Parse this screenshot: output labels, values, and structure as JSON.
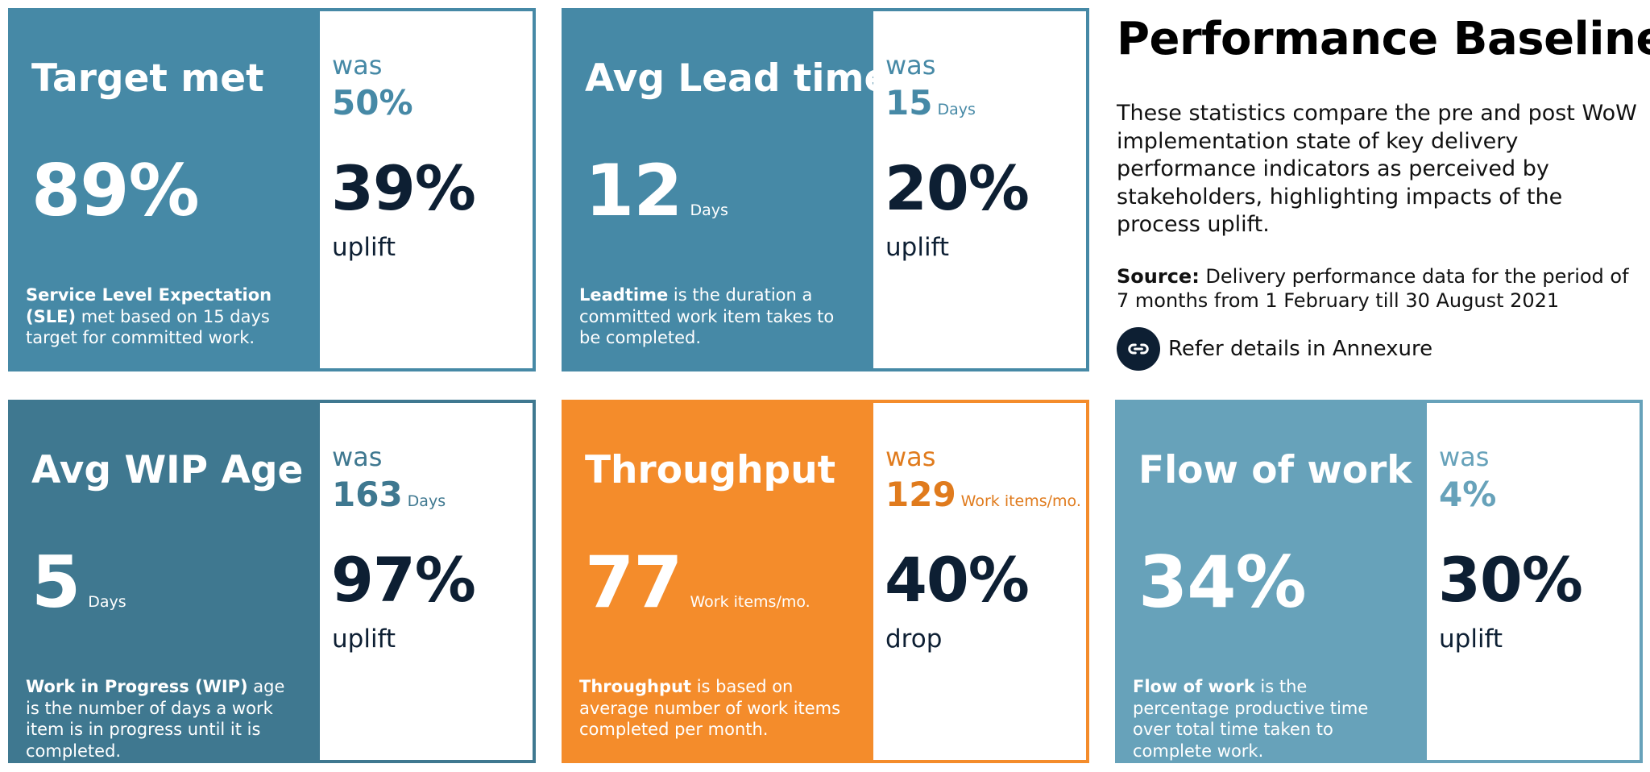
{
  "colors": {
    "teal": "#4689a6",
    "dark_teal": "#3f7890",
    "orange": "#f48c2b",
    "light_teal": "#67a2ba",
    "navy": "#0d1f33"
  },
  "cards": [
    {
      "title": "Target met",
      "value": "89%",
      "value_unit": "",
      "desc_bold": "Service Level Expectation (SLE)",
      "desc_rest": " met based on 15 days target for committed work.",
      "was_label": "was",
      "old_value": "50%",
      "old_unit": "",
      "change_pct": "39%",
      "change_word": "uplift"
    },
    {
      "title": "Avg Lead time",
      "value": "12",
      "value_unit": "Days",
      "desc_bold": "Leadtime",
      "desc_rest": " is the duration a committed work item takes to be completed.",
      "was_label": "was",
      "old_value": "15",
      "old_unit": "Days",
      "change_pct": "20%",
      "change_word": "uplift"
    },
    {
      "title": "Avg WIP Age",
      "value": "5",
      "value_unit": "Days",
      "desc_bold": "Work in Progress (WIP)",
      "desc_rest": " age is the number of days a work item is in progress until it is completed.",
      "was_label": "was",
      "old_value": "163",
      "old_unit": "Days",
      "change_pct": "97%",
      "change_word": "uplift"
    },
    {
      "title": "Throughput",
      "value": "77",
      "value_unit": "Work items/mo.",
      "desc_bold": "Throughput",
      "desc_rest": " is based on average number of work items completed per month.",
      "was_label": "was",
      "old_value": "129",
      "old_unit": "Work items/mo.",
      "change_pct": "40%",
      "change_word": "drop"
    },
    {
      "title": "Flow of work",
      "value": "34%",
      "value_unit": "",
      "desc_bold": "Flow of work",
      "desc_rest": " is the percentage productive time over total time taken to complete work.",
      "was_label": "was",
      "old_value": "4%",
      "old_unit": "",
      "change_pct": "30%",
      "change_word": "uplift"
    }
  ],
  "panel": {
    "title": "Performance Baseline",
    "text": "These statistics compare the pre and post WoW implementation state of key delivery performance indicators as perceived by stakeholders, highlighting impacts of the process uplift.",
    "source_label": "Source:",
    "source_text": " Delivery performance data for the period of 7 months from 1 February till 30 August 2021",
    "link_icon": "link-icon",
    "link_text": "Refer details in Annexure"
  }
}
